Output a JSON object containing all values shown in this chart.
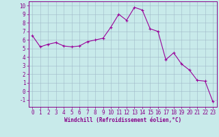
{
  "x": [
    0,
    1,
    2,
    3,
    4,
    5,
    6,
    7,
    8,
    9,
    10,
    11,
    12,
    13,
    14,
    15,
    16,
    17,
    18,
    19,
    20,
    21,
    22,
    23
  ],
  "y": [
    6.5,
    5.2,
    5.5,
    5.7,
    5.3,
    5.2,
    5.3,
    5.8,
    6.0,
    6.2,
    7.5,
    9.0,
    8.3,
    9.8,
    9.5,
    7.3,
    7.0,
    3.7,
    4.5,
    3.2,
    2.5,
    1.3,
    1.2,
    -1.2
  ],
  "line_color": "#990099",
  "marker": "+",
  "marker_size": 3,
  "bg_color": "#c8eaea",
  "grid_color": "#a0b8c8",
  "xlabel": "Windchill (Refroidissement éolien,°C)",
  "xlim": [
    -0.5,
    23.5
  ],
  "ylim": [
    -1.8,
    10.5
  ],
  "yticks": [
    -1,
    0,
    1,
    2,
    3,
    4,
    5,
    6,
    7,
    8,
    9,
    10
  ],
  "xticks": [
    0,
    1,
    2,
    3,
    4,
    5,
    6,
    7,
    8,
    9,
    10,
    11,
    12,
    13,
    14,
    15,
    16,
    17,
    18,
    19,
    20,
    21,
    22,
    23
  ],
  "axis_fontsize": 5.5,
  "tick_fontsize": 5.5,
  "label_color": "#880088",
  "spine_color": "#880088"
}
